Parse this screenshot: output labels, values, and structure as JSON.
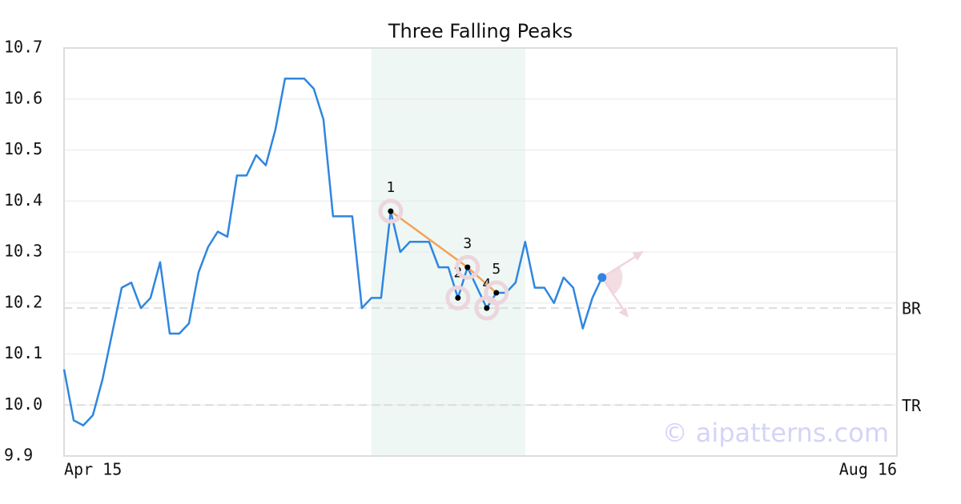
{
  "chart_data": {
    "type": "line",
    "title": "Three Falling Peaks",
    "series": [
      {
        "color": "#2f86e0",
        "values": [
          10.07,
          9.97,
          9.96,
          9.98,
          10.05,
          10.14,
          10.23,
          10.24,
          10.19,
          10.21,
          10.28,
          10.14,
          10.14,
          10.16,
          10.26,
          10.31,
          10.34,
          10.33,
          10.45,
          10.45,
          10.49,
          10.47,
          10.54,
          10.64,
          10.64,
          10.64,
          10.62,
          10.56,
          10.37,
          10.37,
          10.37,
          10.19,
          10.21,
          10.21,
          10.38,
          10.3,
          10.32,
          10.32,
          10.32,
          10.27,
          10.27,
          10.21,
          10.27,
          10.23,
          10.19,
          10.22,
          10.22,
          10.24,
          10.32,
          10.23,
          10.23,
          10.2,
          10.25,
          10.23,
          10.15,
          10.21,
          10.25
        ]
      }
    ],
    "xlim": [
      0,
      86.7
    ],
    "xticks": [
      {
        "value": 0,
        "label": "Apr 15"
      },
      {
        "value": 86.7,
        "label": "Aug 16"
      }
    ],
    "ylim": [
      9.9,
      10.7
    ],
    "yticks": [
      9.9,
      {
        "value": 10,
        "label": "10.0"
      },
      10.1,
      10.2,
      10.3,
      10.4,
      10.5,
      10.6,
      10.7
    ],
    "grid": true,
    "pattern": {
      "color": "#f4a259",
      "region": [
        32,
        48
      ],
      "points": {
        "x": [
          34,
          41,
          42,
          44,
          45
        ],
        "y": [
          10.38,
          10.21,
          10.27,
          10.19,
          10.22
        ],
        "labels": [
          "1",
          "2",
          "3",
          "4",
          "5"
        ]
      }
    },
    "reference_lines": [
      {
        "value": 10.19,
        "label": "BR"
      },
      {
        "value": 10,
        "label": "TR"
      }
    ],
    "watermark": "© aipatterns.com"
  }
}
